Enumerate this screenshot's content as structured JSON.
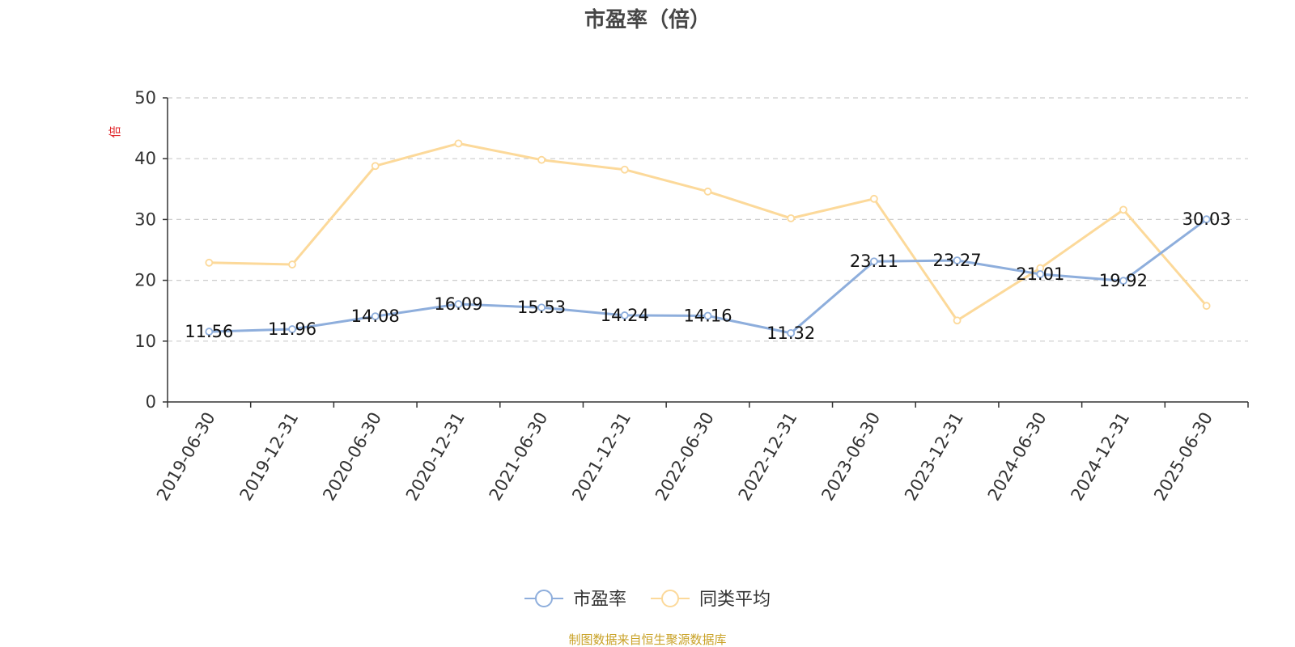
{
  "chart_data": {
    "type": "line",
    "title": "市盈率（倍）",
    "ylabel": "倍",
    "ylim": [
      0,
      50
    ],
    "yticks": [
      0,
      10,
      20,
      30,
      40,
      50
    ],
    "grid": true,
    "legend_position": "bottom",
    "categories": [
      "2019-06-30",
      "2019-12-31",
      "2020-06-30",
      "2020-12-31",
      "2021-06-30",
      "2021-12-31",
      "2022-06-30",
      "2022-12-31",
      "2023-06-30",
      "2023-12-31",
      "2024-06-30",
      "2024-12-31",
      "2025-06-30"
    ],
    "series": [
      {
        "name": "市盈率",
        "color": "#8eaedc",
        "values": [
          11.56,
          11.96,
          14.08,
          16.09,
          15.53,
          14.24,
          14.16,
          11.32,
          23.11,
          23.27,
          21.01,
          19.92,
          30.03
        ],
        "value_labels": [
          "11.56",
          "11.96",
          "14.08",
          "16.09",
          "15.53",
          "14.24",
          "14.16",
          "11.32",
          "23.11",
          "23.27",
          "21.01",
          "19.92",
          "30.03"
        ]
      },
      {
        "name": "同类平均",
        "color": "#fcd99a",
        "values": [
          22.9,
          22.6,
          38.8,
          42.5,
          39.8,
          38.2,
          34.6,
          30.2,
          33.4,
          13.4,
          22.0,
          31.6,
          15.8
        ]
      }
    ]
  },
  "source_note": "制图数据来自恒生聚源数据库",
  "colors": {
    "unit_label": "#e0262a",
    "source_note": "#c9a227",
    "axis": "#333333",
    "grid": "#cccccc"
  }
}
